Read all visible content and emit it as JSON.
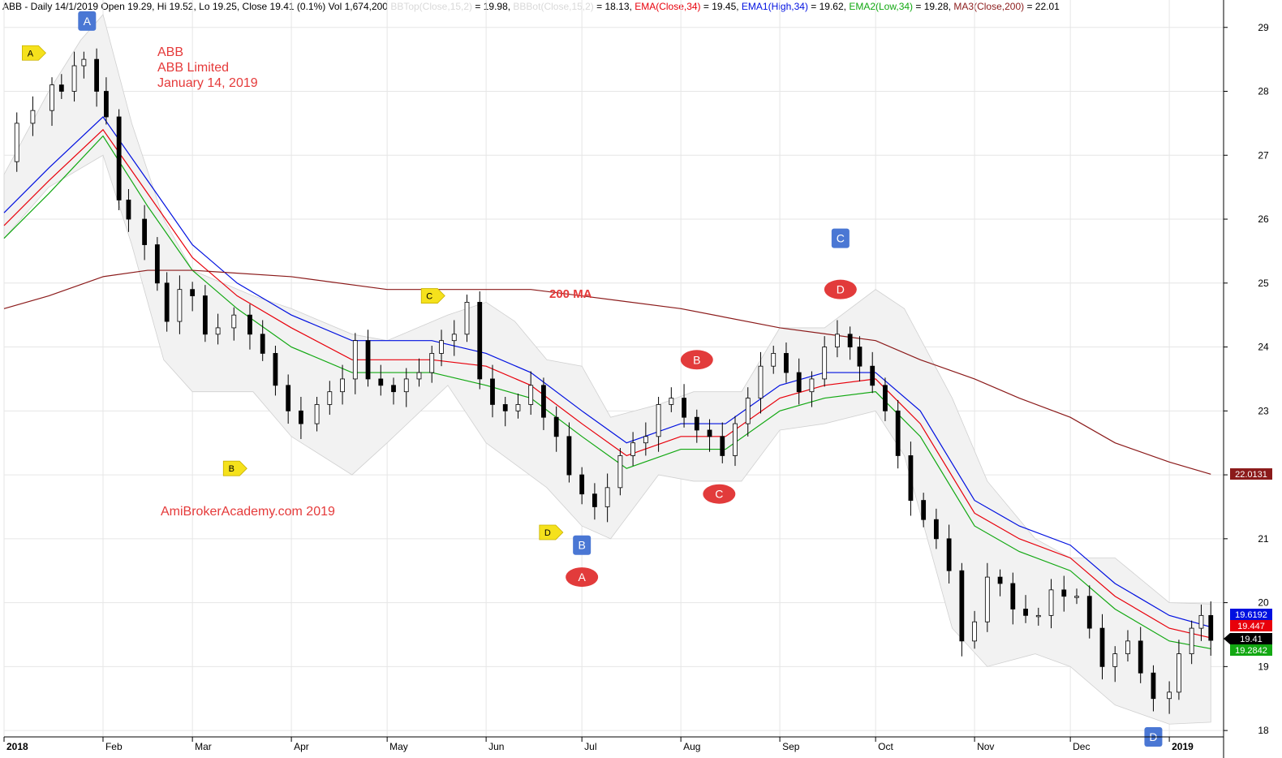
{
  "header": {
    "main": "ABB - Daily 14/1/2019 Open 19.29, Hi 19.52, Lo 19.25, Close 19.41 (0.1%) Vol 1,674,200 ",
    "bbtop": "BBTop(Close,15,2)",
    "bbtop_val": " = 19.98, ",
    "bbbot": "BBBot(Close,15,2)",
    "bbbot_val": " = 18.13, ",
    "ema": "EMA(Close,34)",
    "ema_val": " = 19.45, ",
    "ema1": "EMA1(High,34)",
    "ema1_val": " = 19.62, ",
    "ema2": "EMA2(Low,34)",
    "ema2_val": " = 19.28, ",
    "ma3": "MA3(Close,200)",
    "ma3_val": " = 22.01"
  },
  "annotations": {
    "title_lines": [
      "ABB",
      "ABB Limited",
      "January 14, 2019"
    ],
    "watermark": "AmiBrokerAcademy.com  2019",
    "ma_label": "200 MA"
  },
  "colors": {
    "ema_close": "#e8000b",
    "ema_high": "#0010e0",
    "ema_low": "#12a812",
    "ma200": "#8b1a1a",
    "band_fill": "#f2f2f2",
    "band_edge": "#d0d0d0",
    "grid": "#e6e6e6",
    "marker_blue": "#4a77d4",
    "marker_red": "#e23b3b",
    "marker_yellow": "#f5e11c",
    "annotation_text": "#e53a3a"
  },
  "chart_data": {
    "type": "candlestick",
    "ticker": "ABB",
    "ylim": [
      17.9,
      29.2
    ],
    "y_ticks": [
      18,
      19,
      20,
      21,
      22,
      23,
      24,
      25,
      26,
      27,
      28,
      29
    ],
    "x_range": [
      "2018-01-01",
      "2019-01-18"
    ],
    "x_ticks": [
      {
        "label": "2018",
        "date": "2018-01-01"
      },
      {
        "label": "Feb",
        "date": "2018-02-01"
      },
      {
        "label": "Mar",
        "date": "2018-03-01"
      },
      {
        "label": "Apr",
        "date": "2018-04-01"
      },
      {
        "label": "May",
        "date": "2018-05-01"
      },
      {
        "label": "Jun",
        "date": "2018-06-01"
      },
      {
        "label": "Jul",
        "date": "2018-07-01"
      },
      {
        "label": "Aug",
        "date": "2018-08-01"
      },
      {
        "label": "Sep",
        "date": "2018-09-01"
      },
      {
        "label": "Oct",
        "date": "2018-10-01"
      },
      {
        "label": "Nov",
        "date": "2018-11-01"
      },
      {
        "label": "Dec",
        "date": "2018-12-01"
      },
      {
        "label": "2019",
        "date": "2019-01-01"
      }
    ],
    "close_series": [
      [
        "2018-01-01",
        26.9
      ],
      [
        "2018-01-05",
        27.5
      ],
      [
        "2018-01-10",
        27.7
      ],
      [
        "2018-01-16",
        28.1
      ],
      [
        "2018-01-19",
        28.0
      ],
      [
        "2018-01-23",
        28.4
      ],
      [
        "2018-01-26",
        28.5
      ],
      [
        "2018-01-30",
        28.0
      ],
      [
        "2018-02-02",
        27.6
      ],
      [
        "2018-02-06",
        26.3
      ],
      [
        "2018-02-09",
        26.0
      ],
      [
        "2018-02-14",
        25.6
      ],
      [
        "2018-02-18",
        25.0
      ],
      [
        "2018-02-21",
        24.4
      ],
      [
        "2018-02-25",
        24.9
      ],
      [
        "2018-03-01",
        24.8
      ],
      [
        "2018-03-05",
        24.2
      ],
      [
        "2018-03-09",
        24.3
      ],
      [
        "2018-03-14",
        24.5
      ],
      [
        "2018-03-19",
        24.2
      ],
      [
        "2018-03-23",
        23.9
      ],
      [
        "2018-03-27",
        23.4
      ],
      [
        "2018-03-31",
        23.0
      ],
      [
        "2018-04-04",
        22.8
      ],
      [
        "2018-04-09",
        23.1
      ],
      [
        "2018-04-13",
        23.3
      ],
      [
        "2018-04-17",
        23.5
      ],
      [
        "2018-04-21",
        24.1
      ],
      [
        "2018-04-25",
        23.5
      ],
      [
        "2018-04-29",
        23.4
      ],
      [
        "2018-05-03",
        23.3
      ],
      [
        "2018-05-07",
        23.5
      ],
      [
        "2018-05-11",
        23.6
      ],
      [
        "2018-05-15",
        23.9
      ],
      [
        "2018-05-18",
        24.1
      ],
      [
        "2018-05-22",
        24.2
      ],
      [
        "2018-05-26",
        24.7
      ],
      [
        "2018-05-30",
        23.5
      ],
      [
        "2018-06-03",
        23.1
      ],
      [
        "2018-06-07",
        23.0
      ],
      [
        "2018-06-11",
        23.1
      ],
      [
        "2018-06-15",
        23.4
      ],
      [
        "2018-06-19",
        22.9
      ],
      [
        "2018-06-23",
        22.6
      ],
      [
        "2018-06-27",
        22.0
      ],
      [
        "2018-07-01",
        21.7
      ],
      [
        "2018-07-05",
        21.5
      ],
      [
        "2018-07-09",
        21.8
      ],
      [
        "2018-07-13",
        22.3
      ],
      [
        "2018-07-17",
        22.5
      ],
      [
        "2018-07-21",
        22.6
      ],
      [
        "2018-07-25",
        23.1
      ],
      [
        "2018-07-29",
        23.2
      ],
      [
        "2018-08-02",
        22.9
      ],
      [
        "2018-08-06",
        22.7
      ],
      [
        "2018-08-10",
        22.6
      ],
      [
        "2018-08-14",
        22.3
      ],
      [
        "2018-08-18",
        22.8
      ],
      [
        "2018-08-22",
        23.2
      ],
      [
        "2018-08-26",
        23.7
      ],
      [
        "2018-08-30",
        23.9
      ],
      [
        "2018-09-03",
        23.6
      ],
      [
        "2018-09-07",
        23.3
      ],
      [
        "2018-09-11",
        23.5
      ],
      [
        "2018-09-15",
        24.0
      ],
      [
        "2018-09-19",
        24.2
      ],
      [
        "2018-09-23",
        24.0
      ],
      [
        "2018-09-26",
        23.7
      ],
      [
        "2018-09-30",
        23.4
      ],
      [
        "2018-10-04",
        23.0
      ],
      [
        "2018-10-08",
        22.3
      ],
      [
        "2018-10-12",
        21.6
      ],
      [
        "2018-10-16",
        21.3
      ],
      [
        "2018-10-20",
        21.0
      ],
      [
        "2018-10-24",
        20.5
      ],
      [
        "2018-10-28",
        19.4
      ],
      [
        "2018-11-01",
        19.7
      ],
      [
        "2018-11-05",
        20.4
      ],
      [
        "2018-11-09",
        20.3
      ],
      [
        "2018-11-13",
        19.9
      ],
      [
        "2018-11-17",
        19.8
      ],
      [
        "2018-11-21",
        19.8
      ],
      [
        "2018-11-25",
        20.2
      ],
      [
        "2018-11-29",
        20.1
      ],
      [
        "2018-12-03",
        20.1
      ],
      [
        "2018-12-07",
        19.6
      ],
      [
        "2018-12-11",
        19.0
      ],
      [
        "2018-12-15",
        19.2
      ],
      [
        "2018-12-19",
        19.4
      ],
      [
        "2018-12-23",
        18.9
      ],
      [
        "2018-12-27",
        18.5
      ],
      [
        "2019-01-01",
        18.6
      ],
      [
        "2019-01-04",
        19.2
      ],
      [
        "2019-01-08",
        19.6
      ],
      [
        "2019-01-11",
        19.8
      ],
      [
        "2019-01-14",
        19.41
      ]
    ],
    "series": [
      {
        "name": "EMA1(High,34)",
        "points": [
          [
            "2018-01-01",
            26.1
          ],
          [
            "2018-01-15",
            26.8
          ],
          [
            "2018-02-01",
            27.6
          ],
          [
            "2018-02-15",
            26.6
          ],
          [
            "2018-03-01",
            25.6
          ],
          [
            "2018-03-15",
            25.0
          ],
          [
            "2018-04-01",
            24.5
          ],
          [
            "2018-04-20",
            24.1
          ],
          [
            "2018-05-01",
            24.1
          ],
          [
            "2018-05-15",
            24.1
          ],
          [
            "2018-06-01",
            23.9
          ],
          [
            "2018-06-15",
            23.6
          ],
          [
            "2018-07-01",
            23.0
          ],
          [
            "2018-07-15",
            22.5
          ],
          [
            "2018-08-01",
            22.8
          ],
          [
            "2018-08-15",
            22.8
          ],
          [
            "2018-09-01",
            23.4
          ],
          [
            "2018-09-15",
            23.6
          ],
          [
            "2018-10-01",
            23.6
          ],
          [
            "2018-10-15",
            23.0
          ],
          [
            "2018-11-01",
            21.6
          ],
          [
            "2018-11-15",
            21.2
          ],
          [
            "2018-12-01",
            20.9
          ],
          [
            "2018-12-15",
            20.3
          ],
          [
            "2019-01-01",
            19.8
          ],
          [
            "2019-01-14",
            19.62
          ]
        ]
      },
      {
        "name": "EMA(Close,34)",
        "points": [
          [
            "2018-01-01",
            25.9
          ],
          [
            "2018-01-15",
            26.6
          ],
          [
            "2018-02-01",
            27.4
          ],
          [
            "2018-02-15",
            26.4
          ],
          [
            "2018-03-01",
            25.4
          ],
          [
            "2018-03-15",
            24.8
          ],
          [
            "2018-04-01",
            24.3
          ],
          [
            "2018-04-20",
            23.8
          ],
          [
            "2018-05-01",
            23.8
          ],
          [
            "2018-05-15",
            23.8
          ],
          [
            "2018-06-01",
            23.7
          ],
          [
            "2018-06-15",
            23.4
          ],
          [
            "2018-07-01",
            22.8
          ],
          [
            "2018-07-15",
            22.3
          ],
          [
            "2018-08-01",
            22.6
          ],
          [
            "2018-08-15",
            22.6
          ],
          [
            "2018-09-01",
            23.2
          ],
          [
            "2018-09-15",
            23.4
          ],
          [
            "2018-10-01",
            23.5
          ],
          [
            "2018-10-15",
            22.8
          ],
          [
            "2018-11-01",
            21.4
          ],
          [
            "2018-11-15",
            21.0
          ],
          [
            "2018-12-01",
            20.7
          ],
          [
            "2018-12-15",
            20.1
          ],
          [
            "2019-01-01",
            19.6
          ],
          [
            "2019-01-14",
            19.45
          ]
        ]
      },
      {
        "name": "EMA2(Low,34)",
        "points": [
          [
            "2018-01-01",
            25.7
          ],
          [
            "2018-01-15",
            26.4
          ],
          [
            "2018-02-01",
            27.3
          ],
          [
            "2018-02-15",
            26.2
          ],
          [
            "2018-03-01",
            25.2
          ],
          [
            "2018-03-15",
            24.6
          ],
          [
            "2018-04-01",
            24.0
          ],
          [
            "2018-04-20",
            23.6
          ],
          [
            "2018-05-01",
            23.6
          ],
          [
            "2018-05-15",
            23.6
          ],
          [
            "2018-06-01",
            23.4
          ],
          [
            "2018-06-15",
            23.2
          ],
          [
            "2018-07-01",
            22.6
          ],
          [
            "2018-07-15",
            22.1
          ],
          [
            "2018-08-01",
            22.4
          ],
          [
            "2018-08-15",
            22.4
          ],
          [
            "2018-09-01",
            23.0
          ],
          [
            "2018-09-15",
            23.2
          ],
          [
            "2018-10-01",
            23.3
          ],
          [
            "2018-10-15",
            22.6
          ],
          [
            "2018-11-01",
            21.2
          ],
          [
            "2018-11-15",
            20.8
          ],
          [
            "2018-12-01",
            20.5
          ],
          [
            "2018-12-15",
            19.9
          ],
          [
            "2019-01-01",
            19.4
          ],
          [
            "2019-01-14",
            19.28
          ]
        ]
      },
      {
        "name": "MA3(Close,200)",
        "points": [
          [
            "2018-01-01",
            24.6
          ],
          [
            "2018-01-15",
            24.8
          ],
          [
            "2018-02-01",
            25.1
          ],
          [
            "2018-02-15",
            25.2
          ],
          [
            "2018-03-01",
            25.2
          ],
          [
            "2018-04-01",
            25.1
          ],
          [
            "2018-05-01",
            24.9
          ],
          [
            "2018-05-15",
            24.9
          ],
          [
            "2018-06-01",
            24.9
          ],
          [
            "2018-06-15",
            24.9
          ],
          [
            "2018-07-01",
            24.8
          ],
          [
            "2018-08-01",
            24.6
          ],
          [
            "2018-09-01",
            24.3
          ],
          [
            "2018-10-01",
            24.1
          ],
          [
            "2018-10-15",
            23.8
          ],
          [
            "2018-11-01",
            23.5
          ],
          [
            "2018-11-15",
            23.2
          ],
          [
            "2018-12-01",
            22.9
          ],
          [
            "2018-12-15",
            22.5
          ],
          [
            "2019-01-01",
            22.2
          ],
          [
            "2019-01-14",
            22.01
          ]
        ]
      }
    ],
    "bollinger": {
      "name_top": "BBTop(Close,15,2)",
      "name_bot": "BBBot(Close,15,2)",
      "top": [
        [
          "2018-01-01",
          26.7
        ],
        [
          "2018-01-15",
          28.0
        ],
        [
          "2018-01-25",
          28.8
        ],
        [
          "2018-02-01",
          29.2
        ],
        [
          "2018-02-10",
          27.5
        ],
        [
          "2018-02-20",
          26.0
        ],
        [
          "2018-03-01",
          25.2
        ],
        [
          "2018-03-20",
          24.8
        ],
        [
          "2018-04-01",
          24.6
        ],
        [
          "2018-04-20",
          24.2
        ],
        [
          "2018-05-01",
          24.1
        ],
        [
          "2018-05-20",
          24.5
        ],
        [
          "2018-06-01",
          24.7
        ],
        [
          "2018-06-10",
          24.4
        ],
        [
          "2018-06-20",
          23.8
        ],
        [
          "2018-07-01",
          23.7
        ],
        [
          "2018-07-10",
          22.9
        ],
        [
          "2018-07-25",
          23.1
        ],
        [
          "2018-08-05",
          23.3
        ],
        [
          "2018-08-20",
          23.3
        ],
        [
          "2018-09-01",
          24.3
        ],
        [
          "2018-09-15",
          24.3
        ],
        [
          "2018-10-01",
          24.9
        ],
        [
          "2018-10-10",
          24.6
        ],
        [
          "2018-10-25",
          23.2
        ],
        [
          "2018-11-05",
          21.9
        ],
        [
          "2018-11-20",
          21.0
        ],
        [
          "2018-12-01",
          20.7
        ],
        [
          "2018-12-15",
          20.7
        ],
        [
          "2019-01-01",
          20.0
        ],
        [
          "2019-01-14",
          19.98
        ]
      ]
    },
    "bollinger_bot": [
      [
        "2018-01-01",
        25.7
      ],
      [
        "2018-01-15",
        26.5
      ],
      [
        "2018-02-01",
        27.0
      ],
      [
        "2018-02-10",
        25.6
      ],
      [
        "2018-02-20",
        23.8
      ],
      [
        "2018-03-01",
        23.3
      ],
      [
        "2018-03-20",
        23.3
      ],
      [
        "2018-04-01",
        22.6
      ],
      [
        "2018-04-20",
        22.0
      ],
      [
        "2018-05-01",
        22.5
      ],
      [
        "2018-05-20",
        23.4
      ],
      [
        "2018-06-01",
        22.5
      ],
      [
        "2018-06-20",
        21.8
      ],
      [
        "2018-07-01",
        21.2
      ],
      [
        "2018-07-10",
        21.0
      ],
      [
        "2018-07-25",
        22.0
      ],
      [
        "2018-08-05",
        21.9
      ],
      [
        "2018-08-20",
        21.9
      ],
      [
        "2018-09-01",
        22.7
      ],
      [
        "2018-09-15",
        22.8
      ],
      [
        "2018-10-01",
        23.0
      ],
      [
        "2018-10-10",
        22.3
      ],
      [
        "2018-10-25",
        19.6
      ],
      [
        "2018-11-05",
        19.0
      ],
      [
        "2018-11-20",
        19.2
      ],
      [
        "2018-12-01",
        19.0
      ],
      [
        "2018-12-15",
        18.4
      ],
      [
        "2019-01-01",
        18.1
      ],
      [
        "2019-01-14",
        18.13
      ]
    ],
    "last_values": [
      {
        "label": "19.6192",
        "value": 19.6192,
        "color": "#0010e0"
      },
      {
        "label": "19.447",
        "value": 19.447,
        "color": "#e8000b"
      },
      {
        "label": "19.41",
        "value": 19.41,
        "color": "#000000"
      },
      {
        "label": "19.2842",
        "value": 19.2842,
        "color": "#12a812"
      },
      {
        "label": "22.0131",
        "value": 22.0131,
        "color": "#8b1a1a"
      }
    ],
    "markers": [
      {
        "label": "A",
        "style": "blue-square",
        "date": "2018-01-27",
        "price": 29.1
      },
      {
        "label": "A",
        "style": "yellow-tag",
        "date": "2018-01-10",
        "price": 28.6
      },
      {
        "label": "B",
        "style": "yellow-tag",
        "date": "2018-03-14",
        "price": 22.1
      },
      {
        "label": "C",
        "style": "yellow-tag",
        "date": "2018-05-15",
        "price": 24.8
      },
      {
        "label": "D",
        "style": "yellow-tag",
        "date": "2018-06-21",
        "price": 21.1
      },
      {
        "label": "B",
        "style": "blue-square",
        "date": "2018-07-01",
        "price": 20.9
      },
      {
        "label": "A",
        "style": "red-oval",
        "date": "2018-07-01",
        "price": 20.4
      },
      {
        "label": "B",
        "style": "red-oval",
        "date": "2018-08-06",
        "price": 23.8
      },
      {
        "label": "C",
        "style": "red-oval",
        "date": "2018-08-13",
        "price": 21.7
      },
      {
        "label": "C",
        "style": "blue-square",
        "date": "2018-09-20",
        "price": 25.7
      },
      {
        "label": "D",
        "style": "red-oval",
        "date": "2018-09-20",
        "price": 24.9
      },
      {
        "label": "D",
        "style": "blue-square",
        "date": "2018-12-27",
        "price": 17.9
      }
    ]
  }
}
